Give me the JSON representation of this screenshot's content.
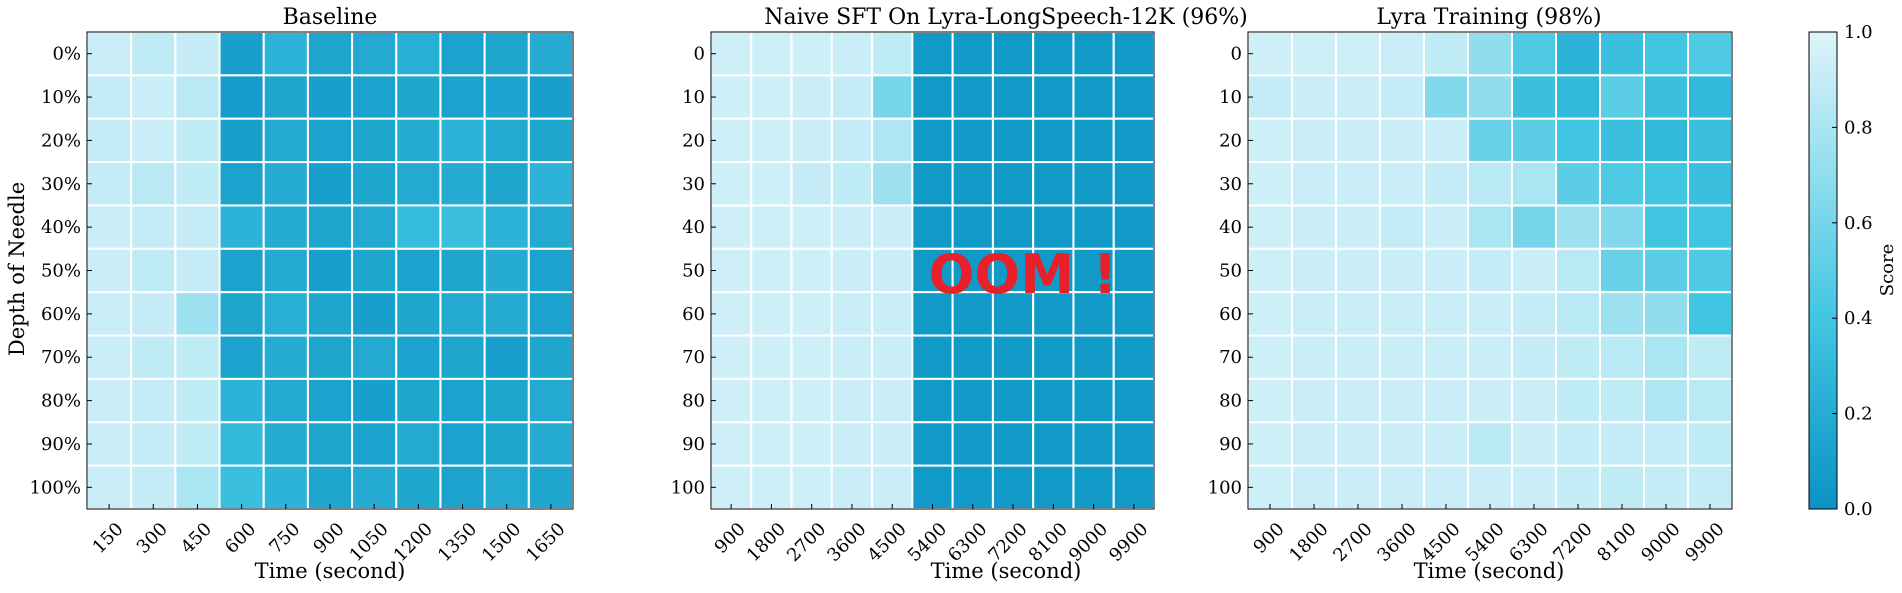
{
  "colorbar": {
    "label": "Score",
    "ticks": [
      0.0,
      0.2,
      0.4,
      0.6,
      0.8,
      1.0
    ],
    "tick_labels": [
      "0.0",
      "0.2",
      "0.4",
      "0.6",
      "0.8",
      "1.0"
    ],
    "color_low": "#0a92c4",
    "color_mid": "#41c6e2",
    "color_high": "#dff4fa"
  },
  "cell_border_color": "#ffffff",
  "chart_data": [
    {
      "type": "heatmap",
      "title": "Baseline",
      "xlabel": "Time (second)",
      "ylabel": "Depth of Needle",
      "x": [
        "150",
        "300",
        "450",
        "600",
        "750",
        "900",
        "1050",
        "1200",
        "1350",
        "1500",
        "1650"
      ],
      "y": [
        "0%",
        "10%",
        "20%",
        "30%",
        "40%",
        "50%",
        "60%",
        "70%",
        "80%",
        "90%",
        "100%"
      ],
      "values": [
        [
          0.92,
          0.88,
          0.9,
          0.1,
          0.25,
          0.15,
          0.18,
          0.22,
          0.12,
          0.15,
          0.2
        ],
        [
          0.9,
          0.92,
          0.86,
          0.08,
          0.15,
          0.1,
          0.12,
          0.15,
          0.12,
          0.14,
          0.1
        ],
        [
          0.9,
          0.92,
          0.88,
          0.1,
          0.18,
          0.12,
          0.15,
          0.2,
          0.25,
          0.18,
          0.15
        ],
        [
          0.9,
          0.86,
          0.88,
          0.12,
          0.2,
          0.1,
          0.15,
          0.18,
          0.2,
          0.15,
          0.25
        ],
        [
          0.92,
          0.9,
          0.9,
          0.25,
          0.2,
          0.15,
          0.18,
          0.32,
          0.35,
          0.25,
          0.18
        ],
        [
          0.92,
          0.88,
          0.9,
          0.12,
          0.18,
          0.1,
          0.15,
          0.12,
          0.15,
          0.2,
          0.12
        ],
        [
          0.92,
          0.9,
          0.75,
          0.15,
          0.22,
          0.15,
          0.1,
          0.15,
          0.18,
          0.2,
          0.12
        ],
        [
          0.92,
          0.88,
          0.88,
          0.12,
          0.2,
          0.15,
          0.18,
          0.12,
          0.15,
          0.1,
          0.15
        ],
        [
          0.92,
          0.9,
          0.88,
          0.25,
          0.18,
          0.12,
          0.1,
          0.15,
          0.12,
          0.15,
          0.18
        ],
        [
          0.92,
          0.9,
          0.88,
          0.3,
          0.2,
          0.15,
          0.12,
          0.18,
          0.12,
          0.15,
          0.2
        ],
        [
          0.92,
          0.9,
          0.8,
          0.35,
          0.25,
          0.15,
          0.2,
          0.15,
          0.12,
          0.18,
          0.15
        ]
      ],
      "zlim": [
        0.0,
        1.0
      ]
    },
    {
      "type": "heatmap",
      "title": "Naive SFT On Lyra-LongSpeech-12K (96%)",
      "xlabel": "Time (second)",
      "ylabel": "",
      "x": [
        "900",
        "1800",
        "2700",
        "3600",
        "4500",
        "5400",
        "6300",
        "7200",
        "8100",
        "9000",
        "9900"
      ],
      "y": [
        "0",
        "10",
        "20",
        "30",
        "40",
        "50",
        "60",
        "70",
        "80",
        "90",
        "100"
      ],
      "values": [
        [
          0.94,
          0.93,
          0.93,
          0.92,
          0.88,
          0.05,
          0.05,
          0.05,
          0.05,
          0.05,
          0.05
        ],
        [
          0.93,
          0.93,
          0.92,
          0.9,
          0.6,
          0.05,
          0.05,
          0.05,
          0.05,
          0.05,
          0.05
        ],
        [
          0.93,
          0.93,
          0.92,
          0.9,
          0.82,
          0.05,
          0.05,
          0.05,
          0.05,
          0.05,
          0.05
        ],
        [
          0.93,
          0.93,
          0.9,
          0.88,
          0.75,
          0.05,
          0.05,
          0.05,
          0.05,
          0.05,
          0.05
        ],
        [
          0.94,
          0.93,
          0.93,
          0.92,
          0.92,
          0.05,
          0.05,
          0.05,
          0.05,
          0.05,
          0.05
        ],
        [
          0.94,
          0.93,
          0.93,
          0.92,
          0.92,
          0.05,
          0.05,
          0.05,
          0.05,
          0.05,
          0.05
        ],
        [
          0.94,
          0.93,
          0.93,
          0.92,
          0.92,
          0.05,
          0.05,
          0.05,
          0.05,
          0.05,
          0.05
        ],
        [
          0.94,
          0.93,
          0.93,
          0.92,
          0.92,
          0.05,
          0.05,
          0.05,
          0.05,
          0.05,
          0.05
        ],
        [
          0.94,
          0.93,
          0.93,
          0.92,
          0.92,
          0.05,
          0.05,
          0.05,
          0.05,
          0.05,
          0.05
        ],
        [
          0.94,
          0.93,
          0.93,
          0.92,
          0.92,
          0.05,
          0.05,
          0.05,
          0.05,
          0.05,
          0.05
        ],
        [
          0.94,
          0.93,
          0.93,
          0.92,
          0.92,
          0.05,
          0.05,
          0.05,
          0.05,
          0.05,
          0.05
        ]
      ],
      "zlim": [
        0.0,
        1.0
      ],
      "annotation": "OOM !",
      "annotation_color": "#e8202a"
    },
    {
      "type": "heatmap",
      "title": "Lyra Training (98%)",
      "xlabel": "Time (second)",
      "ylabel": "",
      "x": [
        "900",
        "1800",
        "2700",
        "3600",
        "4500",
        "5400",
        "6300",
        "7200",
        "8100",
        "9000",
        "9900"
      ],
      "y": [
        "0",
        "10",
        "20",
        "30",
        "40",
        "50",
        "60",
        "70",
        "80",
        "90",
        "100"
      ],
      "values": [
        [
          0.94,
          0.93,
          0.93,
          0.92,
          0.88,
          0.7,
          0.45,
          0.25,
          0.35,
          0.4,
          0.45
        ],
        [
          0.9,
          0.92,
          0.92,
          0.9,
          0.65,
          0.7,
          0.35,
          0.3,
          0.5,
          0.35,
          0.3
        ],
        [
          0.93,
          0.92,
          0.92,
          0.92,
          0.92,
          0.55,
          0.5,
          0.4,
          0.35,
          0.3,
          0.35
        ],
        [
          0.93,
          0.92,
          0.92,
          0.92,
          0.9,
          0.85,
          0.8,
          0.5,
          0.45,
          0.4,
          0.35
        ],
        [
          0.93,
          0.92,
          0.92,
          0.9,
          0.92,
          0.8,
          0.6,
          0.75,
          0.65,
          0.4,
          0.4
        ],
        [
          0.93,
          0.92,
          0.92,
          0.92,
          0.92,
          0.9,
          0.92,
          0.85,
          0.55,
          0.5,
          0.45
        ],
        [
          0.93,
          0.92,
          0.92,
          0.92,
          0.92,
          0.92,
          0.9,
          0.85,
          0.75,
          0.7,
          0.4
        ],
        [
          0.93,
          0.92,
          0.92,
          0.92,
          0.92,
          0.92,
          0.9,
          0.88,
          0.85,
          0.8,
          0.88
        ],
        [
          0.93,
          0.92,
          0.92,
          0.92,
          0.92,
          0.92,
          0.92,
          0.88,
          0.88,
          0.82,
          0.85
        ],
        [
          0.93,
          0.92,
          0.92,
          0.92,
          0.92,
          0.85,
          0.92,
          0.9,
          0.9,
          0.9,
          0.88
        ],
        [
          0.93,
          0.92,
          0.92,
          0.92,
          0.92,
          0.92,
          0.92,
          0.9,
          0.88,
          0.9,
          0.9
        ]
      ],
      "zlim": [
        0.0,
        1.0
      ]
    }
  ]
}
